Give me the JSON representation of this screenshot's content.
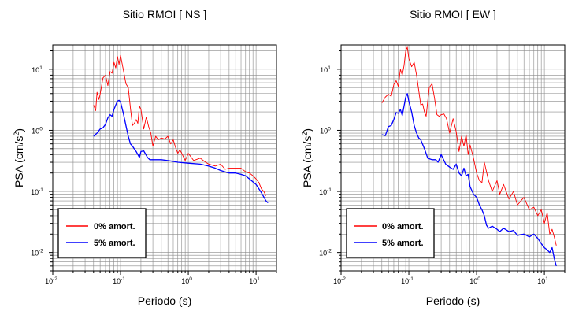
{
  "chart_data": [
    {
      "type": "line",
      "title": "Sitio RMOI [ NS ]",
      "xlabel": "Periodo (s)",
      "ylabel": "PSA (cm/s²)",
      "ylabel_main": "PSA (cm/s",
      "ylabel_sup": "2",
      "ylabel_end": ")",
      "xscale": "log",
      "yscale": "log",
      "xlim": [
        0.01,
        20
      ],
      "ylim": [
        0.005,
        25
      ],
      "grid": true,
      "legend_position": "bottom-left",
      "x_ticks": [
        {
          "base": "10",
          "exp": "-2"
        },
        {
          "base": "10",
          "exp": "-1"
        },
        {
          "base": "10",
          "exp": "0"
        },
        {
          "base": "10",
          "exp": "1"
        }
      ],
      "y_ticks": [
        {
          "base": "10",
          "exp": "-2"
        },
        {
          "base": "10",
          "exp": "-1"
        },
        {
          "base": "10",
          "exp": "0"
        },
        {
          "base": "10",
          "exp": "1"
        }
      ],
      "series": [
        {
          "name": "0% amort.",
          "color": "#ff0000",
          "points": [
            [
              0.04,
              2.6
            ],
            [
              0.043,
              2.1
            ],
            [
              0.045,
              4.2
            ],
            [
              0.048,
              3.2
            ],
            [
              0.05,
              3.9
            ],
            [
              0.055,
              7.2
            ],
            [
              0.06,
              8.0
            ],
            [
              0.065,
              5.4
            ],
            [
              0.07,
              9.2
            ],
            [
              0.075,
              8.6
            ],
            [
              0.08,
              13.0
            ],
            [
              0.085,
              10.5
            ],
            [
              0.09,
              16.2
            ],
            [
              0.095,
              12.0
            ],
            [
              0.1,
              16.8
            ],
            [
              0.11,
              9.8
            ],
            [
              0.12,
              5.8
            ],
            [
              0.13,
              5.0
            ],
            [
              0.14,
              2.3
            ],
            [
              0.15,
              1.2
            ],
            [
              0.16,
              1.3
            ],
            [
              0.17,
              1.5
            ],
            [
              0.18,
              1.3
            ],
            [
              0.19,
              2.5
            ],
            [
              0.2,
              2.2
            ],
            [
              0.22,
              1.05
            ],
            [
              0.24,
              1.65
            ],
            [
              0.26,
              1.15
            ],
            [
              0.28,
              0.9
            ],
            [
              0.3,
              0.55
            ],
            [
              0.33,
              0.8
            ],
            [
              0.36,
              0.7
            ],
            [
              0.4,
              0.75
            ],
            [
              0.45,
              0.72
            ],
            [
              0.5,
              0.8
            ],
            [
              0.55,
              0.6
            ],
            [
              0.6,
              0.7
            ],
            [
              0.65,
              0.52
            ],
            [
              0.7,
              0.42
            ],
            [
              0.75,
              0.48
            ],
            [
              0.8,
              0.42
            ],
            [
              0.9,
              0.32
            ],
            [
              1.0,
              0.42
            ],
            [
              1.2,
              0.32
            ],
            [
              1.5,
              0.35
            ],
            [
              1.8,
              0.3
            ],
            [
              2.0,
              0.28
            ],
            [
              2.5,
              0.26
            ],
            [
              3.0,
              0.28
            ],
            [
              3.5,
              0.23
            ],
            [
              4.0,
              0.24
            ],
            [
              5.0,
              0.24
            ],
            [
              6.0,
              0.24
            ],
            [
              7.0,
              0.21
            ],
            [
              8.0,
              0.2
            ],
            [
              9.0,
              0.18
            ],
            [
              10.0,
              0.16
            ],
            [
              11.0,
              0.14
            ],
            [
              12.0,
              0.11
            ],
            [
              13.0,
              0.1
            ],
            [
              14.0,
              0.085
            ]
          ]
        },
        {
          "name": "5% amort.",
          "color": "#0000ff",
          "points": [
            [
              0.04,
              0.8
            ],
            [
              0.045,
              0.9
            ],
            [
              0.05,
              1.05
            ],
            [
              0.055,
              1.1
            ],
            [
              0.06,
              1.25
            ],
            [
              0.065,
              1.6
            ],
            [
              0.07,
              1.8
            ],
            [
              0.075,
              1.7
            ],
            [
              0.08,
              2.2
            ],
            [
              0.085,
              2.6
            ],
            [
              0.09,
              3.0
            ],
            [
              0.095,
              3.1
            ],
            [
              0.1,
              2.9
            ],
            [
              0.11,
              1.9
            ],
            [
              0.12,
              1.2
            ],
            [
              0.13,
              0.8
            ],
            [
              0.14,
              0.6
            ],
            [
              0.15,
              0.55
            ],
            [
              0.17,
              0.45
            ],
            [
              0.19,
              0.36
            ],
            [
              0.2,
              0.45
            ],
            [
              0.22,
              0.46
            ],
            [
              0.25,
              0.36
            ],
            [
              0.27,
              0.33
            ],
            [
              0.3,
              0.33
            ],
            [
              0.35,
              0.33
            ],
            [
              0.4,
              0.33
            ],
            [
              0.5,
              0.32
            ],
            [
              0.6,
              0.31
            ],
            [
              0.7,
              0.3
            ],
            [
              1.0,
              0.29
            ],
            [
              1.5,
              0.28
            ],
            [
              2.0,
              0.26
            ],
            [
              2.5,
              0.24
            ],
            [
              3.0,
              0.22
            ],
            [
              4.0,
              0.2
            ],
            [
              5.0,
              0.2
            ],
            [
              6.0,
              0.19
            ],
            [
              7.0,
              0.18
            ],
            [
              8.0,
              0.16
            ],
            [
              10.0,
              0.13
            ],
            [
              12.0,
              0.095
            ],
            [
              14.0,
              0.07
            ],
            [
              15.0,
              0.065
            ]
          ]
        }
      ]
    },
    {
      "type": "line",
      "title": "Sitio RMOI [ EW ]",
      "xlabel": "Periodo (s)",
      "ylabel": "PSA (cm/s²)",
      "ylabel_main": "PSA (cm/s",
      "ylabel_sup": "2",
      "ylabel_end": ")",
      "xscale": "log",
      "yscale": "log",
      "xlim": [
        0.01,
        20
      ],
      "ylim": [
        0.005,
        25
      ],
      "grid": true,
      "legend_position": "bottom-left",
      "x_ticks": [
        {
          "base": "10",
          "exp": "-2"
        },
        {
          "base": "10",
          "exp": "-1"
        },
        {
          "base": "10",
          "exp": "0"
        },
        {
          "base": "10",
          "exp": "1"
        }
      ],
      "y_ticks": [
        {
          "base": "10",
          "exp": "-2"
        },
        {
          "base": "10",
          "exp": "-1"
        },
        {
          "base": "10",
          "exp": "0"
        },
        {
          "base": "10",
          "exp": "1"
        }
      ],
      "series": [
        {
          "name": "0% amort.",
          "color": "#ff0000",
          "points": [
            [
              0.04,
              2.8
            ],
            [
              0.045,
              3.5
            ],
            [
              0.05,
              3.9
            ],
            [
              0.055,
              3.6
            ],
            [
              0.06,
              5.6
            ],
            [
              0.065,
              6.5
            ],
            [
              0.07,
              5.2
            ],
            [
              0.075,
              10.0
            ],
            [
              0.08,
              8.0
            ],
            [
              0.085,
              11.5
            ],
            [
              0.09,
              20.0
            ],
            [
              0.095,
              23.0
            ],
            [
              0.1,
              15.0
            ],
            [
              0.11,
              11.0
            ],
            [
              0.12,
              13.0
            ],
            [
              0.13,
              8.0
            ],
            [
              0.14,
              4.5
            ],
            [
              0.15,
              2.6
            ],
            [
              0.16,
              2.7
            ],
            [
              0.17,
              2.0
            ],
            [
              0.18,
              1.7
            ],
            [
              0.2,
              5.0
            ],
            [
              0.22,
              5.8
            ],
            [
              0.24,
              3.3
            ],
            [
              0.26,
              1.8
            ],
            [
              0.28,
              1.7
            ],
            [
              0.3,
              1.8
            ],
            [
              0.33,
              1.85
            ],
            [
              0.36,
              1.55
            ],
            [
              0.4,
              0.9
            ],
            [
              0.45,
              1.55
            ],
            [
              0.5,
              0.95
            ],
            [
              0.55,
              0.45
            ],
            [
              0.6,
              0.8
            ],
            [
              0.65,
              0.55
            ],
            [
              0.7,
              0.85
            ],
            [
              0.75,
              0.4
            ],
            [
              0.8,
              0.58
            ],
            [
              0.9,
              0.35
            ],
            [
              1.0,
              0.2
            ],
            [
              1.1,
              0.15
            ],
            [
              1.2,
              0.14
            ],
            [
              1.3,
              0.3
            ],
            [
              1.5,
              0.15
            ],
            [
              1.7,
              0.1
            ],
            [
              2.0,
              0.15
            ],
            [
              2.2,
              0.09
            ],
            [
              2.5,
              0.13
            ],
            [
              3.0,
              0.075
            ],
            [
              3.5,
              0.1
            ],
            [
              4.0,
              0.06
            ],
            [
              5.0,
              0.08
            ],
            [
              6.0,
              0.05
            ],
            [
              7.0,
              0.055
            ],
            [
              8.0,
              0.04
            ],
            [
              9.0,
              0.05
            ],
            [
              10.0,
              0.03
            ],
            [
              11.0,
              0.045
            ],
            [
              12.0,
              0.02
            ],
            [
              13.0,
              0.024
            ],
            [
              14.0,
              0.018
            ],
            [
              15.0,
              0.013
            ]
          ]
        },
        {
          "name": "5% amort.",
          "color": "#0000ff",
          "points": [
            [
              0.04,
              0.85
            ],
            [
              0.045,
              0.82
            ],
            [
              0.05,
              1.15
            ],
            [
              0.055,
              1.2
            ],
            [
              0.06,
              1.5
            ],
            [
              0.065,
              1.95
            ],
            [
              0.07,
              1.9
            ],
            [
              0.075,
              2.2
            ],
            [
              0.08,
              1.75
            ],
            [
              0.085,
              2.5
            ],
            [
              0.09,
              3.5
            ],
            [
              0.095,
              4.0
            ],
            [
              0.1,
              3.0
            ],
            [
              0.11,
              2.0
            ],
            [
              0.12,
              1.2
            ],
            [
              0.13,
              0.9
            ],
            [
              0.14,
              0.75
            ],
            [
              0.15,
              0.7
            ],
            [
              0.17,
              0.5
            ],
            [
              0.19,
              0.35
            ],
            [
              0.22,
              0.33
            ],
            [
              0.25,
              0.33
            ],
            [
              0.27,
              0.3
            ],
            [
              0.3,
              0.4
            ],
            [
              0.35,
              0.28
            ],
            [
              0.4,
              0.25
            ],
            [
              0.45,
              0.23
            ],
            [
              0.5,
              0.28
            ],
            [
              0.55,
              0.2
            ],
            [
              0.6,
              0.18
            ],
            [
              0.65,
              0.24
            ],
            [
              0.7,
              0.18
            ],
            [
              0.75,
              0.19
            ],
            [
              0.8,
              0.12
            ],
            [
              0.9,
              0.09
            ],
            [
              1.0,
              0.08
            ],
            [
              1.1,
              0.06
            ],
            [
              1.2,
              0.05
            ],
            [
              1.3,
              0.04
            ],
            [
              1.4,
              0.028
            ],
            [
              1.5,
              0.025
            ],
            [
              1.7,
              0.027
            ],
            [
              2.0,
              0.024
            ],
            [
              2.2,
              0.022
            ],
            [
              2.5,
              0.025
            ],
            [
              3.0,
              0.022
            ],
            [
              3.5,
              0.023
            ],
            [
              4.0,
              0.019
            ],
            [
              5.0,
              0.02
            ],
            [
              6.0,
              0.018
            ],
            [
              7.0,
              0.02
            ],
            [
              8.0,
              0.017
            ],
            [
              9.0,
              0.014
            ],
            [
              10.0,
              0.012
            ],
            [
              11.0,
              0.011
            ],
            [
              12.0,
              0.01
            ],
            [
              13.0,
              0.012
            ],
            [
              14.0,
              0.008
            ],
            [
              15.0,
              0.006
            ]
          ]
        }
      ]
    }
  ]
}
